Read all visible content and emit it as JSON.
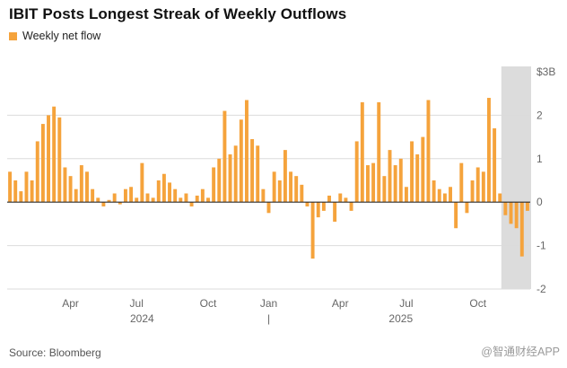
{
  "header": {
    "title": "IBIT Posts Longest Streak of Weekly Outflows",
    "legend_label": "Weekly net flow"
  },
  "footer": {
    "source": "Source: Bloomberg",
    "watermark": "@智通财经APP"
  },
  "chart_data": {
    "type": "bar",
    "title": "IBIT Posts Longest Streak of Weekly Outflows",
    "legend": [
      "Weekly net flow"
    ],
    "unit": "billion USD weekly net flow",
    "bar_color": "#F5A33C",
    "colors": {
      "grid": "#DBDBDB",
      "zero": "#2B2B2B",
      "axis_text": "#666666",
      "highlight": "#DCDCDC"
    },
    "ylim": [
      -2,
      3
    ],
    "ytop_label": "$3B",
    "y_ticks": [
      2,
      1,
      0,
      -1,
      -2
    ],
    "grid": true,
    "legend_position": "top-left",
    "x_ticks": [
      {
        "label": "Apr",
        "index": 11
      },
      {
        "label": "Jul",
        "index": 23
      },
      {
        "label": "Oct",
        "index": 36
      },
      {
        "label": "Jan",
        "index": 47
      },
      {
        "label": "Apr",
        "index": 60
      },
      {
        "label": "Jul",
        "index": 72
      },
      {
        "label": "Oct",
        "index": 85
      }
    ],
    "year_labels": [
      {
        "label": "2024",
        "index": 24
      },
      {
        "label": "2025",
        "index": 71
      }
    ],
    "year_divider_index": 47,
    "highlight": {
      "start_index": 90,
      "color": "#DCDCDC"
    },
    "values": [
      0.7,
      0.5,
      0.25,
      0.7,
      0.5,
      1.4,
      1.8,
      2.0,
      2.2,
      1.95,
      0.8,
      0.6,
      0.3,
      0.85,
      0.7,
      0.3,
      0.1,
      -0.1,
      0.05,
      0.2,
      -0.05,
      0.3,
      0.35,
      0.1,
      0.9,
      0.2,
      0.1,
      0.5,
      0.65,
      0.45,
      0.3,
      0.1,
      0.2,
      -0.1,
      0.15,
      0.3,
      0.1,
      0.8,
      1.0,
      2.1,
      1.1,
      1.3,
      1.9,
      2.35,
      1.45,
      1.3,
      0.3,
      -0.25,
      0.7,
      0.5,
      1.2,
      0.7,
      0.6,
      0.4,
      -0.1,
      -1.3,
      -0.35,
      -0.2,
      0.15,
      -0.45,
      0.2,
      0.1,
      -0.2,
      1.4,
      2.3,
      0.85,
      0.9,
      2.3,
      0.6,
      1.2,
      0.85,
      1.0,
      0.35,
      1.4,
      1.1,
      1.5,
      2.35,
      0.5,
      0.3,
      0.2,
      0.35,
      -0.6,
      0.9,
      -0.25,
      0.5,
      0.8,
      0.7,
      2.4,
      1.7,
      0.2,
      -0.3,
      -0.5,
      -0.6,
      -1.25,
      -0.2
    ]
  }
}
